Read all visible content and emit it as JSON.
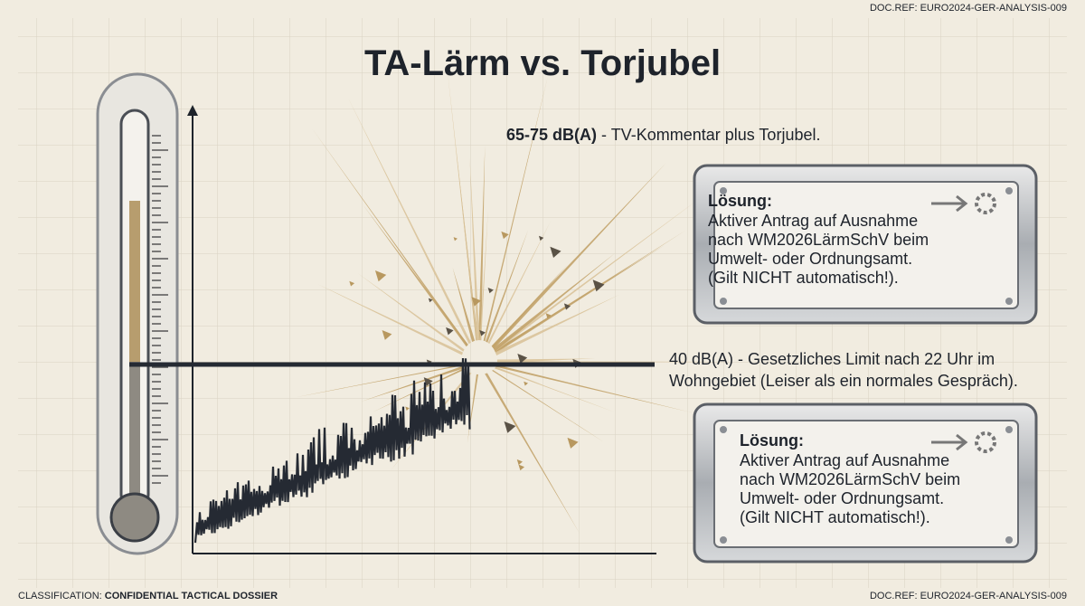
{
  "header": {
    "doc_ref": "DOC.REF: EURO2024-GER-ANALYSIS-009",
    "title": "TA-Lärm vs. Torjubel"
  },
  "annotations": {
    "peak": {
      "level": "65-75 dB(A)",
      "text": " - TV-Kommentar plus Torjubel."
    },
    "limit": {
      "level": "40 dB(A)",
      "lines": [
        " - Gesetzliches Limit nach 22 Uhr im",
        "Wohngebiet (Leiser als ein normales Gespräch)."
      ]
    }
  },
  "boxes": [
    {
      "heading": "Lösung:",
      "lines": [
        "Aktiver Antrag auf Ausnahme",
        "nach WM2026LärmSchV beim",
        "Umwelt- oder Ordnungsamt.",
        "(Gilt NICHT automatisch!)."
      ]
    },
    {
      "heading": "Lösung:",
      "lines": [
        "Aktiver Antrag auf Ausnahme",
        "nach WM2026LärmSchV beim",
        "Umwelt- oder Ordnungsamt.",
        "(Gilt NICHT automatisch!)."
      ]
    }
  ],
  "footer": {
    "classification_label": "CLASSIFICATION: ",
    "classification": "CONFIDENTIAL TACTICAL DOSSIER",
    "doc_ref": "DOC.REF: EURO2024-GER-ANALYSIS-009"
  }
}
